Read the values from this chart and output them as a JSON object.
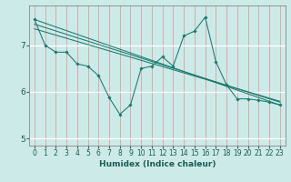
{
  "title": "",
  "xlabel": "Humidex (Indice chaleur)",
  "bg_color": "#cceae8",
  "line_color": "#1a7a6e",
  "xlim": [
    -0.5,
    23.5
  ],
  "ylim": [
    4.85,
    7.85
  ],
  "yticks": [
    5,
    6,
    7
  ],
  "xticks": [
    0,
    1,
    2,
    3,
    4,
    5,
    6,
    7,
    8,
    9,
    10,
    11,
    12,
    13,
    14,
    15,
    16,
    17,
    18,
    19,
    20,
    21,
    22,
    23
  ],
  "series": [
    {
      "x": [
        0,
        1,
        2,
        3,
        4,
        5,
        6,
        7,
        8,
        9,
        10,
        11,
        12,
        13,
        14,
        15,
        16,
        17,
        18,
        19,
        20,
        21,
        22,
        23
      ],
      "y": [
        7.55,
        7.0,
        6.85,
        6.85,
        6.6,
        6.55,
        6.35,
        5.88,
        5.52,
        5.72,
        6.5,
        6.55,
        6.75,
        6.55,
        7.2,
        7.3,
        7.6,
        6.65,
        6.15,
        5.85,
        5.85,
        5.82,
        5.78,
        5.72
      ],
      "has_markers": true
    },
    {
      "x": [
        0,
        23
      ],
      "y": [
        7.55,
        5.72
      ],
      "has_markers": false
    },
    {
      "x": [
        0,
        23
      ],
      "y": [
        7.45,
        5.78
      ],
      "has_markers": false
    },
    {
      "x": [
        0,
        23
      ],
      "y": [
        7.35,
        5.8
      ],
      "has_markers": false
    }
  ]
}
